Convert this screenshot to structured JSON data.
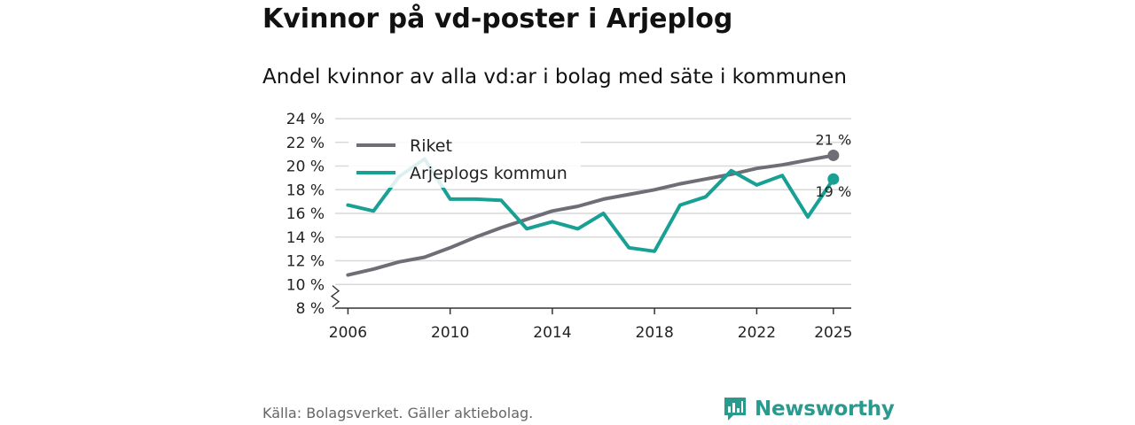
{
  "title": "Kvinnor på vd-poster i Arjeplog",
  "subtitle": "Andel kvinnor av alla vd:ar i bolag med säte i kommunen",
  "source": "Källa: Bolagsverket. Gäller aktiebolag.",
  "brand": "Newsworthy",
  "colors": {
    "riket": "#6f6e76",
    "arjeplog": "#17a093",
    "grid": "#d9d9d9",
    "brand": "#2b9a8e"
  },
  "chart_data": {
    "type": "line",
    "title": "Kvinnor på vd-poster i Arjeplog",
    "xlabel": "",
    "ylabel": "",
    "ylim": [
      8,
      24
    ],
    "xlim": [
      2005.5,
      2025.7
    ],
    "y_ticks": [
      8,
      10,
      12,
      14,
      16,
      18,
      20,
      22,
      24
    ],
    "y_tick_labels": [
      "8 %",
      "10 %",
      "12 %",
      "14 %",
      "16 %",
      "18 %",
      "20 %",
      "22 %",
      "24 %"
    ],
    "x_ticks": [
      2006,
      2010,
      2014,
      2018,
      2022,
      2025
    ],
    "x_tick_labels": [
      "2006",
      "2010",
      "2014",
      "2018",
      "2022",
      "2025"
    ],
    "axis_break": true,
    "legend_position": "top-left",
    "series": [
      {
        "name": "Riket",
        "color": "#6f6e76",
        "x": [
          2006,
          2007,
          2008,
          2009,
          2010,
          2011,
          2012,
          2013,
          2014,
          2015,
          2016,
          2017,
          2018,
          2019,
          2020,
          2021,
          2022,
          2023,
          2024,
          2025
        ],
        "values": [
          10.8,
          11.3,
          11.9,
          12.3,
          13.1,
          14.0,
          14.8,
          15.5,
          16.2,
          16.6,
          17.2,
          17.6,
          18.0,
          18.5,
          18.9,
          19.3,
          19.8,
          20.1,
          20.5,
          20.9
        ],
        "end_label": "21 %"
      },
      {
        "name": "Arjeplogs kommun",
        "color": "#17a093",
        "x": [
          2006,
          2007,
          2008,
          2009,
          2010,
          2011,
          2012,
          2013,
          2014,
          2015,
          2016,
          2017,
          2018,
          2019,
          2020,
          2021,
          2022,
          2023,
          2024,
          2025
        ],
        "values": [
          16.7,
          16.2,
          19.1,
          20.6,
          17.2,
          17.2,
          17.1,
          14.7,
          15.3,
          14.7,
          16.0,
          13.1,
          12.8,
          16.7,
          17.4,
          19.6,
          18.4,
          19.2,
          15.7,
          18.9
        ],
        "end_label": "19 %"
      }
    ]
  }
}
